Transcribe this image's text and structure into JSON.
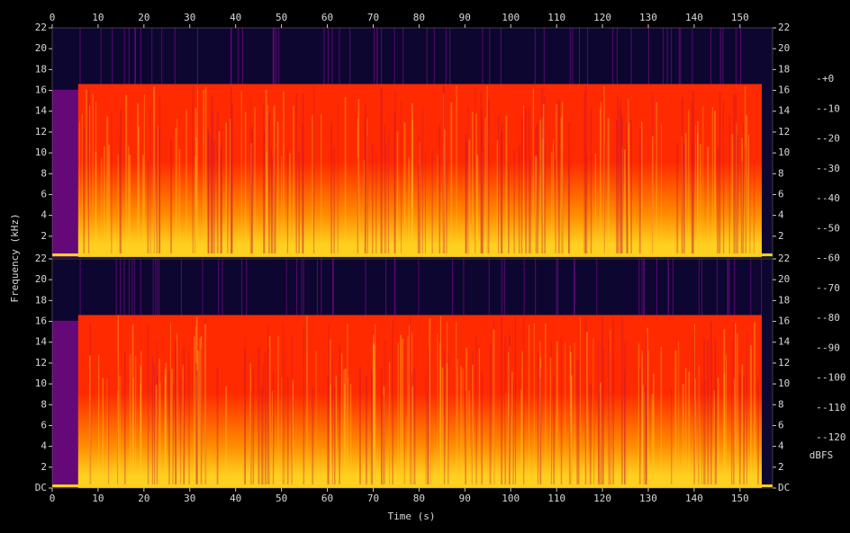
{
  "chart_data": {
    "type": "spectrogram",
    "x_label": "Time (s)",
    "y_label": "Frequency (kHz)",
    "xlim": [
      0,
      157.1
    ],
    "xticks": [
      0,
      10,
      20,
      30,
      40,
      50,
      60,
      70,
      80,
      90,
      100,
      110,
      120,
      130,
      140,
      150
    ],
    "channels": [
      {
        "ylim": [
          0,
          22
        ],
        "yticks": [
          2,
          4,
          6,
          8,
          10,
          12,
          14,
          16,
          18,
          20,
          22
        ]
      },
      {
        "ylim": [
          0,
          22
        ],
        "yticks": [
          {
            "value": 0,
            "label": "DC"
          },
          2,
          4,
          6,
          8,
          10,
          12,
          14,
          16,
          18,
          20,
          22
        ]
      }
    ],
    "colorbar": {
      "label": "dBFS",
      "lim": [
        -120,
        0
      ],
      "ticks": [
        {
          "value": 0,
          "label": "+0"
        },
        -10,
        -20,
        -30,
        -40,
        -50,
        -60,
        -70,
        -80,
        -90,
        -100,
        -110,
        -120
      ],
      "colormap": [
        "#000000",
        "#0d0630",
        "#2a0a6a",
        "#7a0a8a",
        "#c8103a",
        "#ff2a00",
        "#ff8a00",
        "#ffd020",
        "#ffffff"
      ]
    }
  }
}
